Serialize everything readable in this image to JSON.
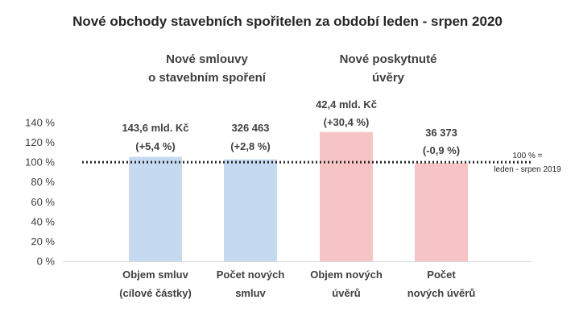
{
  "chart_data": {
    "type": "bar",
    "title": "Nové obchody stavebních spořitelen za období leden - srpen 2020",
    "groups": [
      {
        "label_lines": [
          "Nové smlouvy",
          "o stavebním spoření"
        ],
        "categories": [
          0,
          1
        ]
      },
      {
        "label_lines": [
          "Nové poskytnuté",
          "úvěry"
        ],
        "categories": [
          2,
          3
        ]
      }
    ],
    "categories": [
      [
        "Objem smluv",
        "(cílové částky)"
      ],
      [
        "Počet  nových",
        "smluv"
      ],
      [
        "Objem nových",
        "úvěrů"
      ],
      [
        "Počet",
        "nových úvěrů"
      ]
    ],
    "values": [
      105.4,
      102.8,
      130.4,
      99.1
    ],
    "data_labels": [
      [
        "143,6 mld. Kč",
        "(+5,4 %)"
      ],
      [
        "326 463",
        "(+2,8 %)"
      ],
      [
        "42,4 mld. Kč",
        "(+30,4 %)"
      ],
      [
        "36 373",
        "(-0,9 %)"
      ]
    ],
    "bar_colors": [
      "#c5daf1",
      "#c5daf1",
      "#f7c4c6",
      "#f7c4c6"
    ],
    "ylim": [
      0,
      140
    ],
    "y_ticks": [
      0,
      20,
      40,
      60,
      80,
      100,
      120,
      140
    ],
    "y_tick_labels": [
      "0 %",
      "20 %",
      "40 %",
      "60 %",
      "80 %",
      "100 %",
      "120 %",
      "140 %"
    ],
    "reference_line": {
      "value": 100,
      "label_lines": [
        "100 % =",
        "leden - srpen 2019"
      ],
      "style": "dotted",
      "color": "#262626"
    },
    "grid": false,
    "xlabel": "",
    "ylabel": ""
  }
}
